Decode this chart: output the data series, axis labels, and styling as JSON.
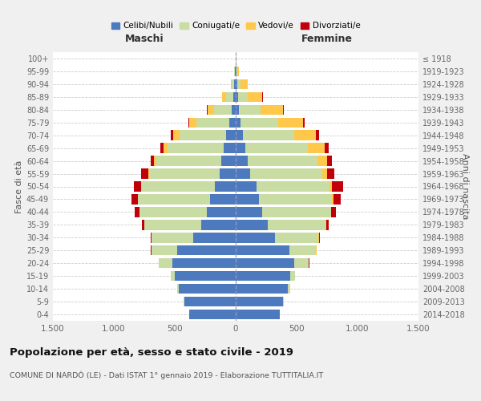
{
  "age_groups": [
    "0-4",
    "5-9",
    "10-14",
    "15-19",
    "20-24",
    "25-29",
    "30-34",
    "35-39",
    "40-44",
    "45-49",
    "50-54",
    "55-59",
    "60-64",
    "65-69",
    "70-74",
    "75-79",
    "80-84",
    "85-89",
    "90-94",
    "95-99",
    "100+"
  ],
  "birth_years": [
    "2014-2018",
    "2009-2013",
    "2004-2008",
    "1999-2003",
    "1994-1998",
    "1989-1993",
    "1984-1988",
    "1979-1983",
    "1974-1978",
    "1969-1973",
    "1964-1968",
    "1959-1963",
    "1954-1958",
    "1949-1953",
    "1944-1948",
    "1939-1943",
    "1934-1938",
    "1929-1933",
    "1924-1928",
    "1919-1923",
    "≤ 1918"
  ],
  "male": {
    "celibi": [
      380,
      420,
      470,
      500,
      520,
      480,
      350,
      280,
      240,
      210,
      170,
      130,
      120,
      100,
      80,
      50,
      30,
      20,
      10,
      5,
      2
    ],
    "coniugati": [
      2,
      5,
      10,
      30,
      110,
      210,
      340,
      470,
      550,
      590,
      600,
      580,
      530,
      460,
      380,
      270,
      150,
      60,
      20,
      5,
      1
    ],
    "vedovi": [
      0,
      0,
      0,
      0,
      1,
      2,
      2,
      2,
      2,
      3,
      5,
      10,
      20,
      35,
      50,
      60,
      50,
      30,
      10,
      2,
      0
    ],
    "divorziati": [
      0,
      0,
      0,
      0,
      2,
      5,
      8,
      20,
      35,
      55,
      60,
      55,
      30,
      25,
      20,
      10,
      5,
      2,
      1,
      0,
      0
    ]
  },
  "female": {
    "nubili": [
      360,
      390,
      430,
      450,
      480,
      440,
      320,
      260,
      220,
      190,
      170,
      120,
      100,
      80,
      60,
      40,
      25,
      18,
      10,
      5,
      2
    ],
    "coniugate": [
      2,
      5,
      15,
      40,
      120,
      220,
      360,
      480,
      560,
      600,
      600,
      590,
      570,
      510,
      420,
      310,
      180,
      80,
      30,
      8,
      1
    ],
    "vedove": [
      0,
      0,
      0,
      0,
      1,
      2,
      2,
      3,
      5,
      10,
      20,
      40,
      80,
      140,
      180,
      200,
      180,
      120,
      60,
      15,
      2
    ],
    "divorziate": [
      0,
      0,
      0,
      0,
      2,
      5,
      8,
      20,
      40,
      60,
      90,
      60,
      40,
      30,
      25,
      15,
      8,
      3,
      1,
      0,
      0
    ]
  },
  "colors": {
    "celibi_nubili": "#4d7abf",
    "coniugati": "#c8dca4",
    "vedovi": "#ffc84a",
    "divorziati": "#c0000b"
  },
  "title": "Popolazione per età, sesso e stato civile - 2019",
  "subtitle": "COMUNE DI NARDÒ (LE) - Dati ISTAT 1° gennaio 2019 - Elaborazione TUTTITALIA.IT",
  "xlabel_left": "Maschi",
  "xlabel_right": "Femmine",
  "ylabel_left": "Fasce di età",
  "ylabel_right": "Anni di nascita",
  "xlim": 1500,
  "xticks": [
    -1500,
    -1000,
    -500,
    0,
    500,
    1000,
    1500
  ],
  "xtick_labels": [
    "1.500",
    "1.000",
    "500",
    "0",
    "500",
    "1.000",
    "1.500"
  ],
  "legend_labels": [
    "Celibi/Nubili",
    "Coniugati/e",
    "Vedovi/e",
    "Divorziati/e"
  ],
  "background_color": "#f0f0f0",
  "plot_bg_color": "#ffffff"
}
